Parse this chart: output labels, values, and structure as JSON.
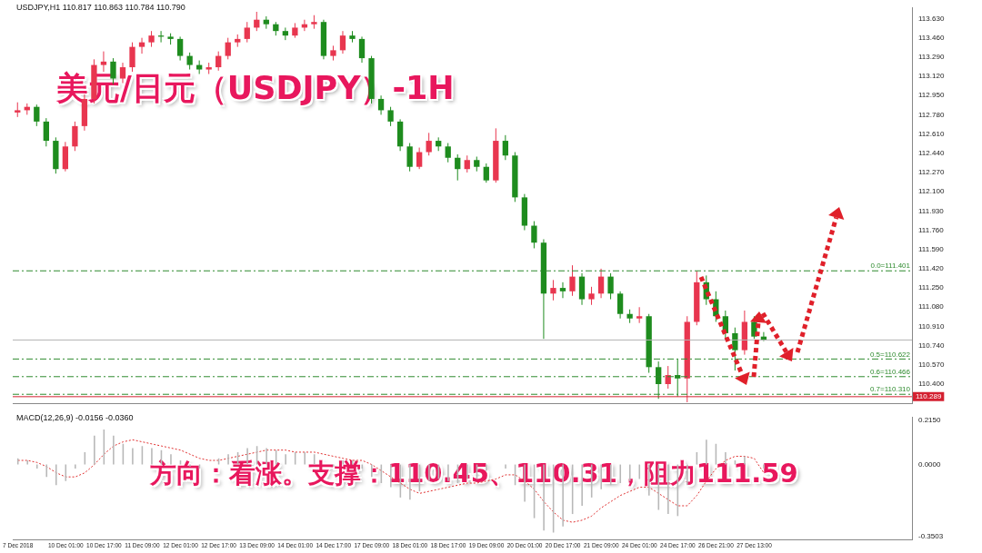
{
  "chart_data": [
    {
      "type": "candlestick",
      "title": "USDJPY,H1 110.817 110.863 110.784 110.790",
      "annotations": [
        "美元/日元（USDJPY）-1H"
      ],
      "categories": [
        null,
        null,
        null,
        null,
        null,
        null,
        null,
        null,
        null,
        null,
        null,
        null,
        null,
        null,
        null,
        null,
        null,
        null,
        null,
        null,
        null,
        null,
        null,
        null,
        null,
        null,
        null,
        null,
        null,
        null,
        null,
        null,
        null,
        null,
        null,
        null,
        null,
        null,
        null,
        null,
        null,
        null,
        null,
        null,
        null,
        null,
        null,
        null,
        null,
        null,
        null,
        null,
        null,
        null,
        null,
        null,
        null,
        null,
        null,
        null,
        null,
        null,
        null,
        null,
        null,
        null,
        null,
        null,
        null,
        null,
        null,
        null,
        null,
        null,
        null,
        null,
        null,
        null,
        null,
        null,
        null,
        null,
        null,
        null,
        null,
        null,
        null,
        null,
        null,
        null,
        null,
        null,
        null,
        null
      ],
      "ohlc": [
        [
          112.8,
          112.89,
          112.76,
          112.82
        ],
        [
          112.82,
          112.88,
          112.78,
          112.85
        ],
        [
          112.85,
          112.87,
          112.68,
          112.72
        ],
        [
          112.72,
          112.75,
          112.5,
          112.55
        ],
        [
          112.55,
          112.58,
          112.26,
          112.3
        ],
        [
          112.3,
          112.54,
          112.28,
          112.5
        ],
        [
          112.5,
          112.72,
          112.46,
          112.68
        ],
        [
          112.68,
          112.96,
          112.64,
          112.92
        ],
        [
          112.92,
          113.27,
          112.88,
          113.22
        ],
        [
          113.22,
          113.34,
          113.16,
          113.25
        ],
        [
          113.25,
          113.28,
          113.05,
          113.1
        ],
        [
          113.1,
          113.24,
          113.06,
          113.2
        ],
        [
          113.2,
          113.42,
          113.16,
          113.38
        ],
        [
          113.38,
          113.46,
          113.32,
          113.42
        ],
        [
          113.42,
          113.52,
          113.38,
          113.48
        ],
        [
          113.48,
          113.52,
          113.42,
          113.47
        ],
        [
          113.47,
          113.5,
          113.4,
          113.45
        ],
        [
          113.45,
          113.47,
          113.26,
          113.3
        ],
        [
          113.3,
          113.33,
          113.18,
          113.22
        ],
        [
          113.22,
          113.26,
          113.14,
          113.18
        ],
        [
          113.18,
          113.24,
          113.14,
          113.2
        ],
        [
          113.2,
          113.34,
          113.17,
          113.3
        ],
        [
          113.3,
          113.46,
          113.27,
          113.42
        ],
        [
          113.42,
          113.49,
          113.38,
          113.45
        ],
        [
          113.45,
          113.6,
          113.42,
          113.55
        ],
        [
          113.55,
          113.69,
          113.52,
          113.62
        ],
        [
          113.62,
          113.65,
          113.54,
          113.58
        ],
        [
          113.58,
          113.6,
          113.48,
          113.52
        ],
        [
          113.52,
          113.55,
          113.44,
          113.48
        ],
        [
          113.48,
          113.59,
          113.46,
          113.55
        ],
        [
          113.55,
          113.62,
          113.52,
          113.58
        ],
        [
          113.58,
          113.66,
          113.54,
          113.6
        ],
        [
          113.6,
          113.62,
          113.27,
          113.3
        ],
        [
          113.3,
          113.39,
          113.26,
          113.35
        ],
        [
          113.35,
          113.52,
          113.32,
          113.48
        ],
        [
          113.48,
          113.52,
          113.42,
          113.45
        ],
        [
          113.45,
          113.47,
          113.24,
          113.28
        ],
        [
          113.28,
          113.3,
          112.88,
          112.92
        ],
        [
          112.92,
          112.95,
          112.78,
          112.82
        ],
        [
          112.82,
          112.85,
          112.68,
          112.72
        ],
        [
          112.72,
          112.74,
          112.46,
          112.5
        ],
        [
          112.5,
          112.53,
          112.28,
          112.32
        ],
        [
          112.32,
          112.49,
          112.3,
          112.45
        ],
        [
          112.45,
          112.62,
          112.42,
          112.55
        ],
        [
          112.55,
          112.58,
          112.46,
          112.5
        ],
        [
          112.5,
          112.53,
          112.36,
          112.4
        ],
        [
          112.4,
          112.43,
          112.2,
          112.3
        ],
        [
          112.3,
          112.42,
          112.27,
          112.38
        ],
        [
          112.38,
          112.41,
          112.28,
          112.32
        ],
        [
          112.32,
          112.35,
          112.18,
          112.2
        ],
        [
          112.2,
          112.66,
          112.18,
          112.55
        ],
        [
          112.55,
          112.6,
          112.38,
          112.42
        ],
        [
          112.42,
          112.45,
          112.01,
          112.05
        ],
        [
          112.05,
          112.08,
          111.76,
          111.8
        ],
        [
          111.8,
          111.84,
          111.6,
          111.65
        ],
        [
          111.65,
          111.68,
          110.8,
          111.2
        ],
        [
          111.2,
          111.32,
          111.14,
          111.25
        ],
        [
          111.25,
          111.3,
          111.16,
          111.22
        ],
        [
          111.22,
          111.45,
          111.18,
          111.35
        ],
        [
          111.35,
          111.38,
          111.1,
          111.15
        ],
        [
          111.15,
          111.26,
          111.1,
          111.2
        ],
        [
          111.2,
          111.42,
          111.16,
          111.35
        ],
        [
          111.35,
          111.38,
          111.15,
          111.2
        ],
        [
          111.2,
          111.22,
          110.98,
          111.02
        ],
        [
          111.02,
          111.06,
          110.94,
          110.98
        ],
        [
          110.98,
          111.08,
          110.94,
          111.0
        ],
        [
          111.0,
          111.02,
          110.5,
          110.55
        ],
        [
          110.55,
          110.6,
          110.27,
          110.4
        ],
        [
          110.4,
          110.56,
          110.36,
          110.48
        ],
        [
          110.48,
          110.62,
          110.29,
          110.45
        ],
        [
          110.45,
          111.0,
          110.24,
          110.95
        ],
        [
          110.95,
          111.4,
          110.92,
          111.3
        ],
        [
          111.3,
          111.36,
          111.1,
          111.15
        ],
        [
          111.15,
          111.22,
          110.95,
          111.0
        ],
        [
          111.0,
          111.05,
          110.8,
          110.85
        ],
        [
          110.85,
          110.9,
          110.52,
          110.7
        ],
        [
          110.7,
          111.05,
          110.66,
          110.95
        ],
        [
          110.95,
          111.0,
          110.8,
          110.82
        ],
        [
          110.82,
          110.86,
          110.78,
          110.79
        ],
        null,
        null,
        null,
        null,
        null,
        null,
        null,
        null,
        null,
        null,
        null,
        null,
        null,
        null,
        null
      ],
      "colors": [
        "#e8364f",
        "#e8364f",
        "#1e8c1e",
        "#1e8c1e",
        "#1e8c1e",
        "#e8364f",
        "#e8364f",
        "#e8364f",
        "#e8364f",
        "#e8364f",
        "#1e8c1e",
        "#e8364f",
        "#e8364f",
        "#e8364f",
        "#e8364f",
        "#1e8c1e",
        "#1e8c1e",
        "#1e8c1e",
        "#1e8c1e",
        "#1e8c1e",
        "#e8364f",
        "#e8364f",
        "#e8364f",
        "#e8364f",
        "#e8364f",
        "#e8364f",
        "#1e8c1e",
        "#1e8c1e",
        "#1e8c1e",
        "#e8364f",
        "#e8364f",
        "#e8364f",
        "#1e8c1e",
        "#e8364f",
        "#e8364f",
        "#1e8c1e",
        "#1e8c1e",
        "#1e8c1e",
        "#1e8c1e",
        "#1e8c1e",
        "#1e8c1e",
        "#1e8c1e",
        "#e8364f",
        "#e8364f",
        "#1e8c1e",
        "#1e8c1e",
        "#1e8c1e",
        "#e8364f",
        "#1e8c1e",
        "#1e8c1e",
        "#e8364f",
        "#1e8c1e",
        "#1e8c1e",
        "#1e8c1e",
        "#1e8c1e",
        "#1e8c1e",
        "#e8364f",
        "#1e8c1e",
        "#e8364f",
        "#1e8c1e",
        "#e8364f",
        "#e8364f",
        "#1e8c1e",
        "#1e8c1e",
        "#1e8c1e",
        "#e8364f",
        "#1e8c1e",
        "#1e8c1e",
        "#e8364f",
        "#1e8c1e",
        "#e8364f",
        "#e8364f",
        "#1e8c1e",
        "#1e8c1e",
        "#1e8c1e",
        "#1e8c1e",
        "#e8364f",
        "#1e8c1e",
        "#1e8c1e",
        null,
        null,
        null,
        null,
        null,
        null,
        null,
        null,
        null,
        null,
        null,
        null,
        null,
        null,
        null
      ],
      "ylim": [
        110.23,
        113.73
      ],
      "yticks": [
        {
          "value": 110.4,
          "label": "110.400"
        },
        {
          "value": 110.57,
          "label": "110.570"
        },
        {
          "value": 110.74,
          "label": "110.740"
        },
        {
          "value": 110.91,
          "label": "110.910"
        },
        {
          "value": 111.08,
          "label": "111.080"
        },
        {
          "value": 111.25,
          "label": "111.250"
        },
        {
          "value": 111.42,
          "label": "111.420"
        },
        {
          "value": 111.59,
          "label": "111.590"
        },
        {
          "value": 111.76,
          "label": "111.760"
        },
        {
          "value": 111.93,
          "label": "111.930"
        },
        {
          "value": 112.1,
          "label": "112.100"
        },
        {
          "value": 112.27,
          "label": "112.270"
        },
        {
          "value": 112.44,
          "label": "112.440"
        },
        {
          "value": 112.61,
          "label": "112.610"
        },
        {
          "value": 112.78,
          "label": "112.780"
        },
        {
          "value": 112.95,
          "label": "112.950"
        },
        {
          "value": 113.12,
          "label": "113.120"
        },
        {
          "value": 113.29,
          "label": "113.290"
        },
        {
          "value": 113.46,
          "label": "113.460"
        },
        {
          "value": 113.63,
          "label": "113.630"
        }
      ],
      "ref_lines": [
        {
          "axis": "y",
          "value": 111.401,
          "label": "0.0=111.401",
          "color": "#2e8b2e",
          "line_style": "dashed"
        },
        {
          "axis": "y",
          "value": 110.622,
          "label": "0.5=110.622",
          "color": "#2e8b2e",
          "line_style": "dashed"
        },
        {
          "axis": "y",
          "value": 110.466,
          "label": "0.6=110.466",
          "color": "#2e8b2e",
          "line_style": "dashed"
        },
        {
          "axis": "y",
          "value": 110.31,
          "label": "0.7=110.310",
          "color": "#2e8b2e",
          "line_style": "dashed"
        },
        {
          "axis": "y",
          "value": 110.79,
          "color": "#b4b4b4",
          "line_style": "solid"
        },
        {
          "axis": "y",
          "value": 110.289,
          "label": "110.289",
          "color": "#d42030",
          "line_style": "solid"
        }
      ],
      "tick_labels": "y"
    },
    {
      "type": "bar",
      "title": "MACD(12,26,9) -0.0156 -0.0360",
      "annotations": [
        "方向：看涨。支撑：110.45、110.31，阻力111.59"
      ],
      "categories": [
        "7 Dec 2018",
        null,
        null,
        null,
        null,
        "10 Dec 01:00",
        null,
        null,
        null,
        "10 Dec 17:00",
        null,
        null,
        null,
        "11 Dec 09:00",
        null,
        null,
        null,
        "12 Dec 01:00",
        null,
        null,
        null,
        "12 Dec 17:00",
        null,
        null,
        null,
        "13 Dec 09:00",
        null,
        null,
        null,
        "14 Dec 01:00",
        null,
        null,
        null,
        "14 Dec 17:00",
        null,
        null,
        null,
        "17 Dec 09:00",
        null,
        null,
        null,
        "18 Dec 01:00",
        null,
        null,
        null,
        "18 Dec 17:00",
        null,
        null,
        null,
        "19 Dec 09:00",
        null,
        null,
        null,
        "20 Dec 01:00",
        null,
        null,
        null,
        "20 Dec 17:00",
        null,
        null,
        null,
        "21 Dec 09:00",
        null,
        null,
        null,
        "24 Dec 01:00",
        null,
        null,
        null,
        "24 Dec 17:00",
        null,
        null,
        null,
        "26 Dec 21:00",
        null,
        null,
        null,
        "27 Dec 13:00",
        null,
        null,
        null,
        null,
        null,
        null,
        null,
        null,
        null,
        null,
        null,
        null,
        null,
        null,
        null,
        null
      ],
      "series": [
        {
          "color": "#b8b8b8",
          "values": [
            0.03,
            0.02,
            -0.02,
            -0.06,
            -0.1,
            -0.08,
            -0.02,
            0.06,
            0.14,
            0.17,
            0.14,
            0.1,
            0.08,
            0.09,
            0.08,
            0.07,
            0.05,
            0.02,
            -0.01,
            -0.02,
            0.0,
            0.03,
            0.05,
            0.06,
            0.08,
            0.09,
            0.08,
            0.07,
            0.05,
            0.06,
            0.06,
            0.05,
            0.0,
            -0.01,
            0.02,
            0.02,
            -0.02,
            -0.06,
            -0.09,
            -0.11,
            -0.16,
            -0.17,
            -0.13,
            -0.08,
            -0.07,
            -0.08,
            -0.09,
            -0.07,
            -0.07,
            -0.03,
            0.0,
            -0.02,
            -0.1,
            -0.18,
            -0.26,
            -0.32,
            -0.33,
            -0.3,
            -0.24,
            -0.2,
            -0.16,
            -0.12,
            -0.1,
            -0.09,
            -0.08,
            -0.07,
            -0.15,
            -0.22,
            -0.24,
            -0.25,
            -0.1,
            0.06,
            0.12,
            0.1,
            0.06,
            0.02,
            0.04,
            0.0,
            -0.02,
            null,
            null,
            null,
            null,
            null,
            null,
            null,
            null,
            null,
            null,
            null,
            null,
            null,
            null,
            null
          ]
        },
        {
          "type": "line",
          "color": "#e03030",
          "line_style": "dotted",
          "marker": "none",
          "values": [
            0.02,
            0.02,
            0.01,
            -0.01,
            -0.04,
            -0.06,
            -0.06,
            -0.04,
            0.0,
            0.05,
            0.09,
            0.11,
            0.12,
            0.11,
            0.1,
            0.09,
            0.08,
            0.07,
            0.05,
            0.03,
            0.02,
            0.02,
            0.03,
            0.04,
            0.05,
            0.06,
            0.07,
            0.07,
            0.07,
            0.06,
            0.06,
            0.06,
            0.05,
            0.04,
            0.03,
            0.02,
            0.02,
            0.0,
            -0.03,
            -0.06,
            -0.09,
            -0.12,
            -0.14,
            -0.13,
            -0.12,
            -0.11,
            -0.1,
            -0.09,
            -0.09,
            -0.08,
            -0.07,
            -0.05,
            -0.05,
            -0.08,
            -0.12,
            -0.18,
            -0.23,
            -0.27,
            -0.28,
            -0.27,
            -0.25,
            -0.21,
            -0.18,
            -0.15,
            -0.13,
            -0.11,
            -0.11,
            -0.14,
            -0.17,
            -0.2,
            -0.2,
            -0.15,
            -0.08,
            -0.02,
            0.02,
            0.04,
            0.04,
            0.03,
            -0.04,
            null,
            null,
            null,
            null,
            null,
            null,
            null,
            null,
            null,
            null,
            null,
            null,
            null,
            null,
            null
          ]
        }
      ],
      "ylim": [
        -0.363,
        0.228
      ],
      "yticks": [
        {
          "value": -0.3503,
          "label": "-0.3503"
        },
        {
          "value": 0,
          "label": "0.0000"
        },
        {
          "value": 0.215,
          "label": "0.2150"
        }
      ]
    }
  ]
}
